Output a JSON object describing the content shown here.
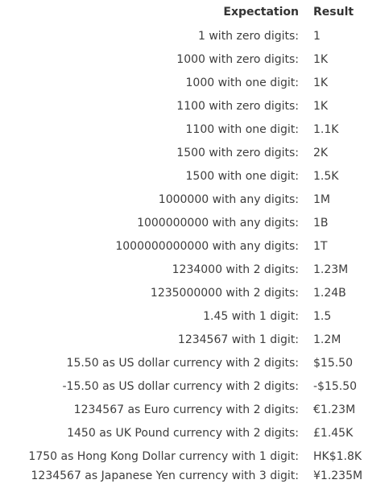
{
  "header": {
    "expectation": "Expectation",
    "result": "Result"
  },
  "rows": [
    {
      "expectation": "1 with zero digits:",
      "result": "1"
    },
    {
      "expectation": "1000 with zero digits:",
      "result": "1K"
    },
    {
      "expectation": "1000 with one digit:",
      "result": "1K"
    },
    {
      "expectation": "1100 with zero digits:",
      "result": "1K"
    },
    {
      "expectation": "1100 with one digit:",
      "result": "1.1K"
    },
    {
      "expectation": "1500 with zero digits:",
      "result": "2K"
    },
    {
      "expectation": "1500 with one digit:",
      "result": "1.5K"
    },
    {
      "expectation": "1000000 with any digits:",
      "result": "1M"
    },
    {
      "expectation": "1000000000 with any digits:",
      "result": "1B"
    },
    {
      "expectation": "1000000000000 with any digits:",
      "result": "1T"
    },
    {
      "expectation": "1234000 with 2 digits:",
      "result": "1.23M"
    },
    {
      "expectation": "1235000000 with 2 digits:",
      "result": "1.24B"
    },
    {
      "expectation": "1.45 with 1 digit:",
      "result": "1.5"
    },
    {
      "expectation": "1234567 with 1 digit:",
      "result": "1.2M"
    },
    {
      "expectation": "15.50 as US dollar currency with 2 digits:",
      "result": "$15.50"
    },
    {
      "expectation": "-15.50 as US dollar currency with 2 digits:",
      "result": "-$15.50"
    },
    {
      "expectation": "1234567 as Euro currency with 2 digits:",
      "result": "€1.23M"
    },
    {
      "expectation": "1450 as UK Pound currency with 2 digits:",
      "result": "£1.45K"
    },
    {
      "expectation": "1750 as Hong Kong Dollar currency with 1 digit:",
      "result": "HK$1.8K"
    },
    {
      "expectation": "1234567 as Japanese Yen currency with 3 digit:",
      "result": "¥1.235M"
    }
  ]
}
